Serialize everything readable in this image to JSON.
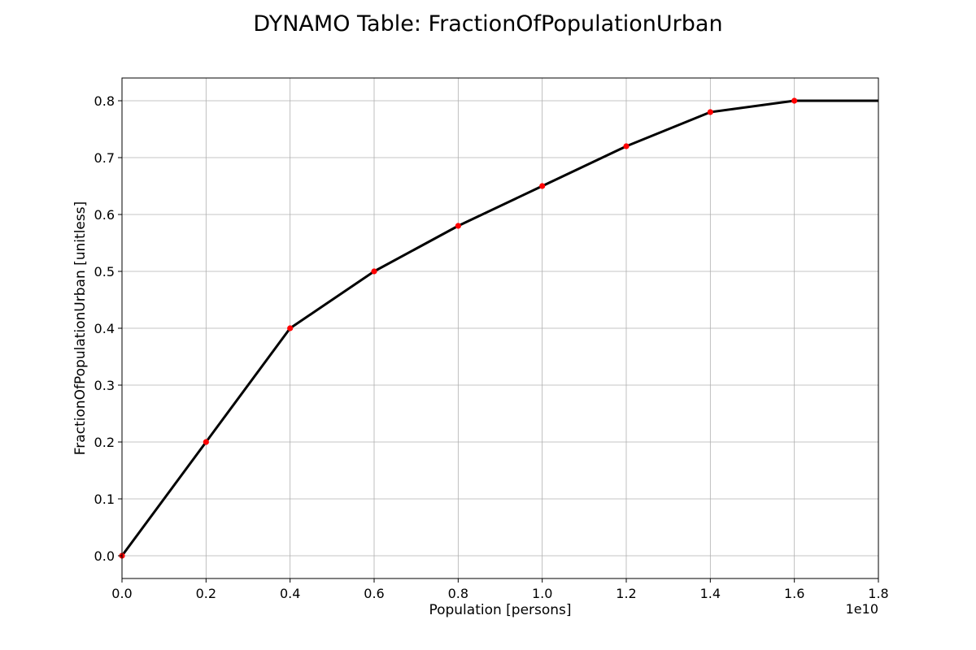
{
  "chart_data": {
    "type": "line",
    "title": "DYNAMO Table: FractionOfPopulationUrban",
    "xlabel": "Population [persons]",
    "ylabel": "FractionOfPopulationUrban [unitless]",
    "x_offset_label": "1e10",
    "x_scale": 10000000000,
    "xlim": [
      0,
      18000000000
    ],
    "ylim": [
      -0.04,
      0.84
    ],
    "x_ticks": [
      0,
      2000000000,
      4000000000,
      6000000000,
      8000000000,
      10000000000,
      12000000000,
      14000000000,
      16000000000,
      18000000000
    ],
    "x_tick_labels": [
      "0.0",
      "0.2",
      "0.4",
      "0.6",
      "0.8",
      "1.0",
      "1.2",
      "1.4",
      "1.6",
      "1.8"
    ],
    "y_ticks": [
      0,
      0.1,
      0.2,
      0.3,
      0.4,
      0.5,
      0.6,
      0.7,
      0.8
    ],
    "y_tick_labels": [
      "0.0",
      "0.1",
      "0.2",
      "0.3",
      "0.4",
      "0.5",
      "0.6",
      "0.7",
      "0.8"
    ],
    "grid": true,
    "series": [
      {
        "style": "line",
        "color": "#000000",
        "x": [
          0,
          2000000000,
          4000000000,
          6000000000,
          8000000000,
          10000000000,
          12000000000,
          14000000000,
          16000000000,
          18000000000
        ],
        "values": [
          0.0,
          0.2,
          0.4,
          0.5,
          0.58,
          0.65,
          0.72,
          0.78,
          0.8,
          0.8
        ]
      },
      {
        "style": "markers",
        "color": "#ff0000",
        "x": [
          0,
          2000000000,
          4000000000,
          6000000000,
          8000000000,
          10000000000,
          12000000000,
          14000000000,
          16000000000
        ],
        "values": [
          0.0,
          0.2,
          0.4,
          0.5,
          0.58,
          0.65,
          0.72,
          0.78,
          0.8
        ]
      }
    ]
  }
}
